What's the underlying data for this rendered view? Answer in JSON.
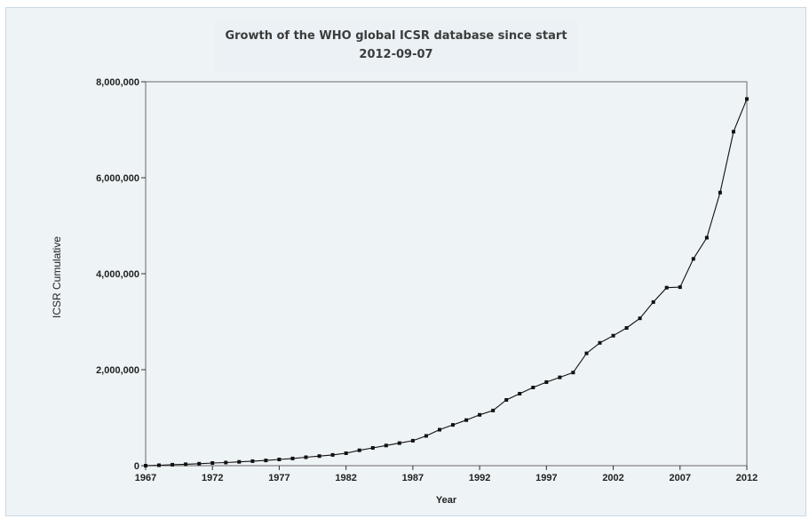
{
  "title": "Growth of the WHO global ICSR database since start",
  "subtitle": "2012-09-07",
  "colors": {
    "background": "#eef3f6",
    "plot_border": "#888888",
    "line": "#111111"
  },
  "chart_data": {
    "type": "line",
    "title": "Growth of the WHO global ICSR database since start",
    "subtitle": "2012-09-07",
    "xlabel": "Year",
    "ylabel": "ICSR Cumulative",
    "xlim": [
      1967,
      2012
    ],
    "ylim": [
      0,
      8000000
    ],
    "x_ticks": [
      1967,
      1972,
      1977,
      1982,
      1987,
      1992,
      1997,
      2002,
      2007,
      2012
    ],
    "y_ticks": [
      0,
      2000000,
      4000000,
      6000000,
      8000000
    ],
    "x_tick_labels": [
      "1967",
      "1972",
      "1977",
      "1982",
      "1987",
      "1992",
      "1997",
      "2002",
      "2007",
      "2012"
    ],
    "y_tick_labels": [
      "0",
      "2,000,000",
      "4,000,000",
      "6,000,000",
      "8,000,000"
    ],
    "grid": false,
    "legend": "none",
    "series": [
      {
        "x": [
          1967,
          1968,
          1969,
          1970,
          1971,
          1972,
          1973,
          1974,
          1975,
          1976,
          1977,
          1978,
          1979,
          1980,
          1981,
          1982,
          1983,
          1984,
          1985,
          1986,
          1987,
          1988,
          1989,
          1990,
          1991,
          1992,
          1993,
          1994,
          1995,
          1996,
          1997,
          1998,
          1999,
          2000,
          2001,
          2002,
          2003,
          2004,
          2005,
          2006,
          2007,
          2008,
          2009,
          2010,
          2011,
          2012
        ],
        "y": [
          0,
          10000,
          20000,
          30000,
          40000,
          55000,
          65000,
          80000,
          95000,
          110000,
          130000,
          150000,
          175000,
          200000,
          225000,
          260000,
          320000,
          370000,
          420000,
          470000,
          520000,
          620000,
          750000,
          850000,
          950000,
          1060000,
          1150000,
          1370000,
          1500000,
          1630000,
          1740000,
          1840000,
          1940000,
          2340000,
          2560000,
          2710000,
          2870000,
          3070000,
          3410000,
          3710000,
          3720000,
          4310000,
          4750000,
          5690000,
          6960000,
          7640000
        ]
      }
    ]
  }
}
